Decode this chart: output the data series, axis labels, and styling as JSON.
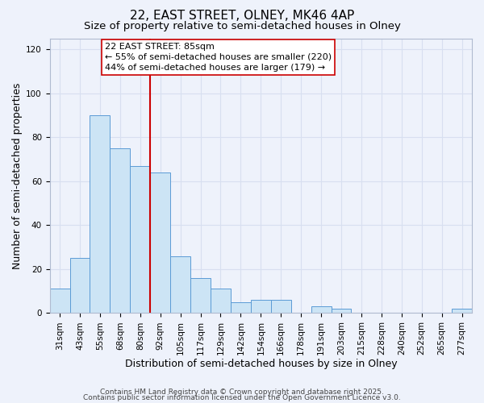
{
  "title": "22, EAST STREET, OLNEY, MK46 4AP",
  "subtitle": "Size of property relative to semi-detached houses in Olney",
  "xlabel": "Distribution of semi-detached houses by size in Olney",
  "ylabel": "Number of semi-detached properties",
  "bar_labels": [
    "31sqm",
    "43sqm",
    "55sqm",
    "68sqm",
    "80sqm",
    "92sqm",
    "105sqm",
    "117sqm",
    "129sqm",
    "142sqm",
    "154sqm",
    "166sqm",
    "178sqm",
    "191sqm",
    "203sqm",
    "215sqm",
    "228sqm",
    "240sqm",
    "252sqm",
    "265sqm",
    "277sqm"
  ],
  "bar_values": [
    11,
    25,
    90,
    75,
    67,
    64,
    26,
    16,
    11,
    5,
    6,
    6,
    0,
    3,
    2,
    0,
    0,
    0,
    0,
    0,
    2
  ],
  "bar_facecolor": "#cce4f5",
  "bar_edgecolor": "#5b9bd5",
  "ylim": [
    0,
    125
  ],
  "yticks": [
    0,
    20,
    40,
    60,
    80,
    100,
    120
  ],
  "vline_x": 4.5,
  "vline_color": "#cc0000",
  "annotation_title": "22 EAST STREET: 85sqm",
  "annotation_line1": "← 55% of semi-detached houses are smaller (220)",
  "annotation_line2": "44% of semi-detached houses are larger (179) →",
  "footer1": "Contains HM Land Registry data © Crown copyright and database right 2025.",
  "footer2": "Contains public sector information licensed under the Open Government Licence v3.0.",
  "bg_color": "#eef2fb",
  "grid_color": "#d8dff0",
  "title_fontsize": 11,
  "subtitle_fontsize": 9.5,
  "axis_label_fontsize": 9,
  "tick_fontsize": 7.5,
  "footer_fontsize": 6.5,
  "annot_fontsize": 8
}
